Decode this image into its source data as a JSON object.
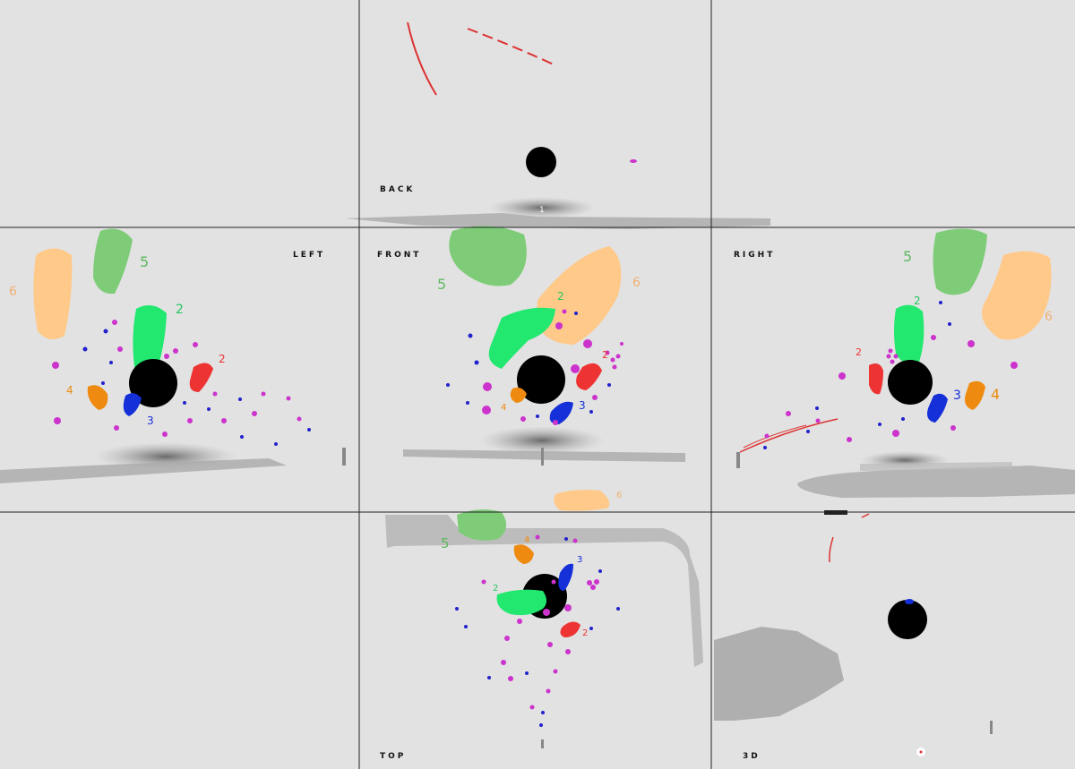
{
  "views": {
    "back": {
      "label": "BACK"
    },
    "left": {
      "label": "LEFT"
    },
    "front": {
      "label": "FRONT"
    },
    "right": {
      "label": "RIGHT"
    },
    "top": {
      "label": "TOP"
    },
    "three_d": {
      "label": "3D"
    }
  },
  "stroke_numbers": {
    "one": "1",
    "two": "2",
    "three": "3",
    "four": "4",
    "five": "5",
    "six": "6"
  },
  "colors": {
    "background": "#e2e2e2",
    "divider": "#222222",
    "sphere": "#000000",
    "stroke_1": "#e03030",
    "stroke_2": "#22e870",
    "stroke_3": "#1530d8",
    "stroke_4": "#ee8a10",
    "stroke_5": "#7fcc78",
    "stroke_6": "#ffc98a",
    "particles_magenta": "#cc33cc",
    "particles_blue": "#2222cc",
    "shadow": "#888888"
  }
}
